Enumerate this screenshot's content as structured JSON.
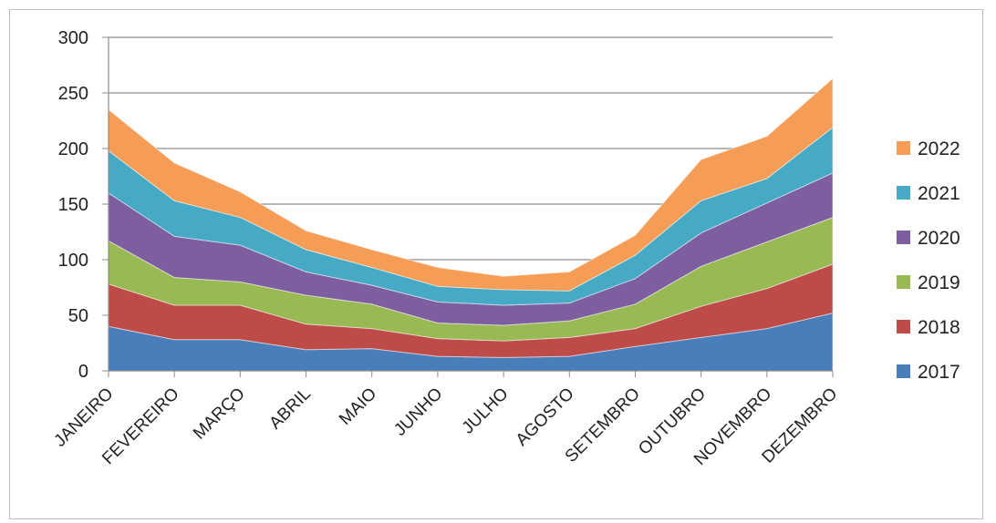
{
  "chart_data": {
    "type": "area",
    "stacked": true,
    "title": "",
    "xlabel": "",
    "ylabel": "",
    "ylim": [
      0,
      300
    ],
    "yticks": [
      0,
      50,
      100,
      150,
      200,
      250,
      300
    ],
    "grid": true,
    "legend_position": "right",
    "categories": [
      "JANEIRO",
      "FEVEREIRO",
      "MARÇO",
      "ABRIL",
      "MAIO",
      "JUNHO",
      "JULHO",
      "AGOSTO",
      "SETEMBRO",
      "OUTUBRO",
      "NOVEMBRO",
      "DEZEMBRO"
    ],
    "series": [
      {
        "name": "2017",
        "color": "#4a7ebb",
        "values": [
          40,
          28,
          28,
          19,
          20,
          13,
          12,
          13,
          22,
          30,
          38,
          52
        ]
      },
      {
        "name": "2018",
        "color": "#be4b48",
        "values": [
          38,
          31,
          31,
          23,
          18,
          16,
          15,
          17,
          16,
          28,
          36,
          44
        ]
      },
      {
        "name": "2019",
        "color": "#98b954",
        "values": [
          39,
          25,
          21,
          26,
          22,
          14,
          14,
          15,
          22,
          36,
          42,
          42
        ]
      },
      {
        "name": "2020",
        "color": "#7d5fa0",
        "values": [
          43,
          37,
          33,
          21,
          17,
          19,
          18,
          16,
          23,
          30,
          35,
          40
        ]
      },
      {
        "name": "2021",
        "color": "#46aac5",
        "values": [
          38,
          32,
          25,
          20,
          16,
          14,
          14,
          11,
          21,
          29,
          22,
          41
        ]
      },
      {
        "name": "2022",
        "color": "#f59d56",
        "values": [
          37,
          34,
          23,
          17,
          16,
          17,
          12,
          17,
          18,
          37,
          38,
          44
        ]
      }
    ]
  }
}
